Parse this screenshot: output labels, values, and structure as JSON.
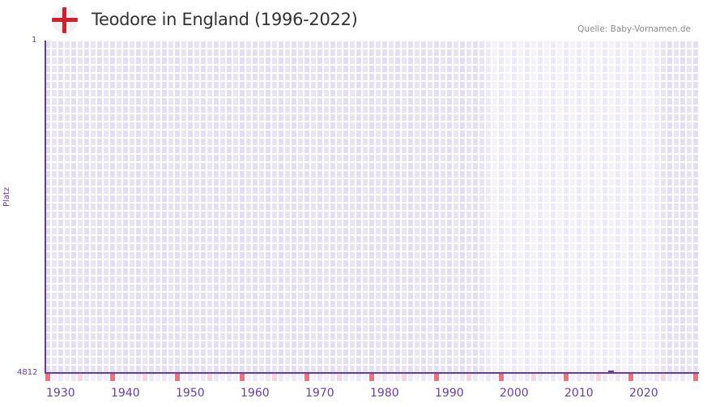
{
  "header": {
    "title": "Teodore in England (1996-2022)",
    "source": "Quelle: Baby-Vornamen.de",
    "flag_icon": "england-flag-icon"
  },
  "colors": {
    "axis": "#6a3d9a",
    "cell_dark": "#e3dfee",
    "cell_mid": "#e8e4f1",
    "cell_light_a": "#efeaf8",
    "cell_light_b": "#f4f1fb",
    "decade_mark": "#e57583",
    "half_decade_mark": "#f5d6df",
    "flag_red": "#cf2030"
  },
  "chart_data": {
    "type": "line",
    "title": "Teodore in England (1996-2022)",
    "xlabel": "",
    "ylabel": "Platz",
    "y_inverted": true,
    "ylim": [
      1,
      4812
    ],
    "xlim": [
      1928,
      2028
    ],
    "highlight_range": [
      1996,
      2022
    ],
    "x_ticks": [
      "1930",
      "1940",
      "1950",
      "1960",
      "1970",
      "1980",
      "1990",
      "2000",
      "2010",
      "2020"
    ],
    "y_ticks": [
      "1",
      "4812"
    ],
    "grid": true,
    "legend": null,
    "series": [
      {
        "name": "Teodore",
        "x": [
          2015
        ],
        "values": [
          4812
        ]
      }
    ]
  },
  "axes": {
    "y_top": "1",
    "y_bottom": "4812",
    "y_label": "Platz",
    "x_labels": [
      "1930",
      "1940",
      "1950",
      "1960",
      "1970",
      "1980",
      "1990",
      "2000",
      "2010",
      "2020"
    ]
  }
}
